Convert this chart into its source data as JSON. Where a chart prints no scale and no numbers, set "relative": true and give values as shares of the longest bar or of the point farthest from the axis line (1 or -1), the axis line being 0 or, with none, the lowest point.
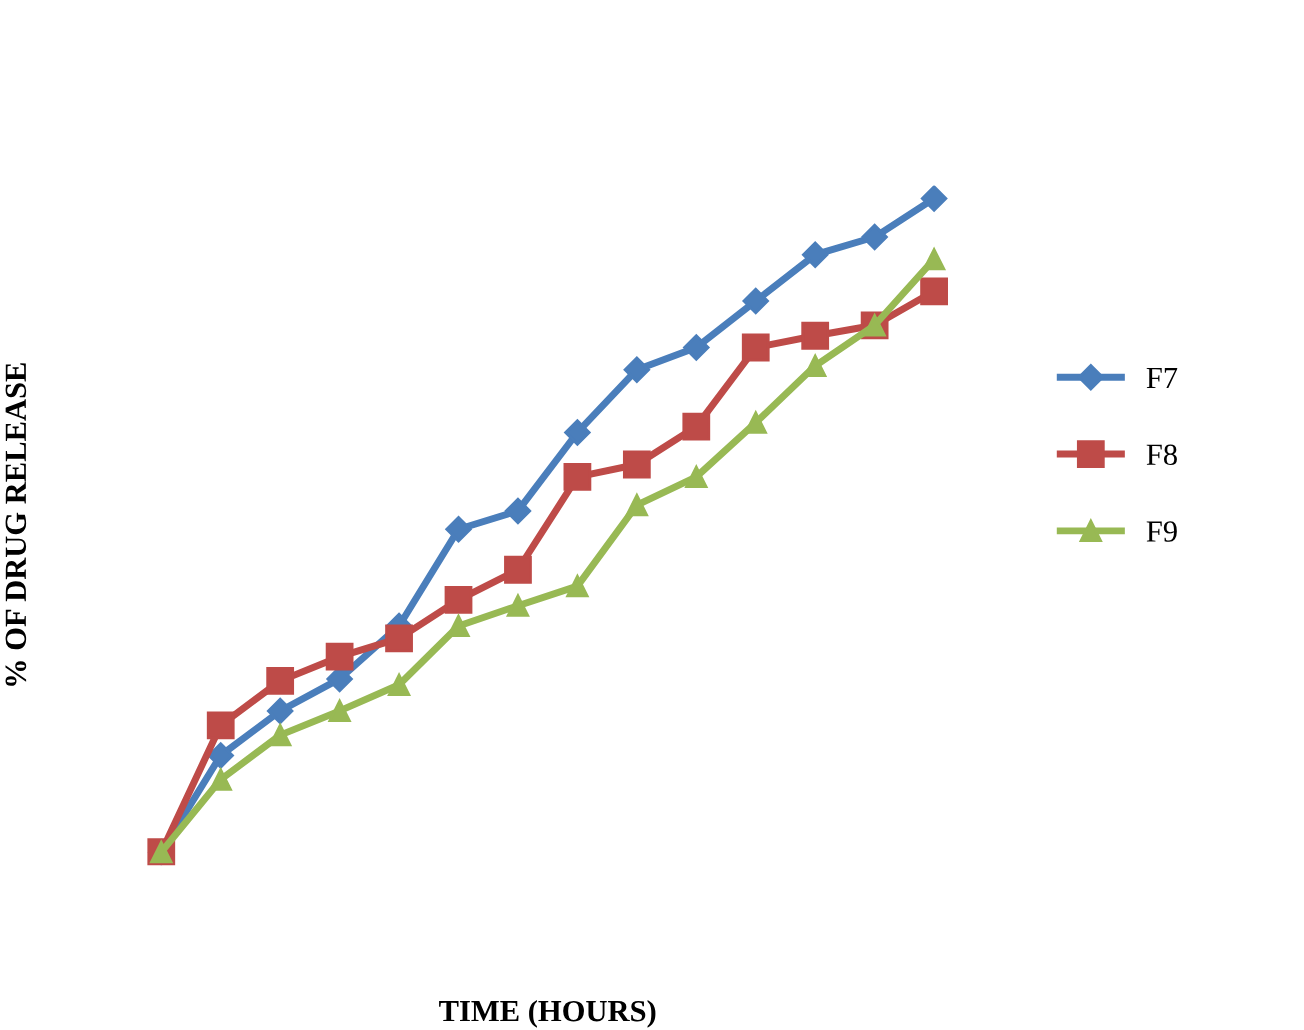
{
  "chart_data": {
    "type": "line",
    "relative": true,
    "xlabel": "TIME (HOURS)",
    "ylabel": "% OF DRUG RELEASE",
    "legend": "right",
    "grid": false,
    "categories": [
      null,
      null,
      null,
      null,
      null,
      null,
      null,
      null,
      null,
      null,
      null,
      null,
      null,
      null
    ],
    "series": [
      {
        "name": "F7",
        "color": "#4a7ebb",
        "marker": "diamond",
        "values": [
          0,
          0.148,
          0.216,
          0.265,
          0.346,
          0.494,
          0.522,
          0.642,
          0.738,
          0.772,
          0.843,
          0.914,
          0.941,
          1
        ]
      },
      {
        "name": "F8",
        "color": "#be4b48",
        "marker": "square",
        "values": [
          0,
          0.194,
          0.262,
          0.299,
          0.327,
          0.386,
          0.432,
          0.574,
          0.593,
          0.651,
          0.772,
          0.79,
          0.806,
          0.858
        ]
      },
      {
        "name": "F9",
        "color": "#98b954",
        "marker": "triangle",
        "values": [
          0,
          0.111,
          0.179,
          0.216,
          0.256,
          0.346,
          0.377,
          0.407,
          0.531,
          0.574,
          0.657,
          0.744,
          0.806,
          0.907
        ]
      }
    ]
  }
}
